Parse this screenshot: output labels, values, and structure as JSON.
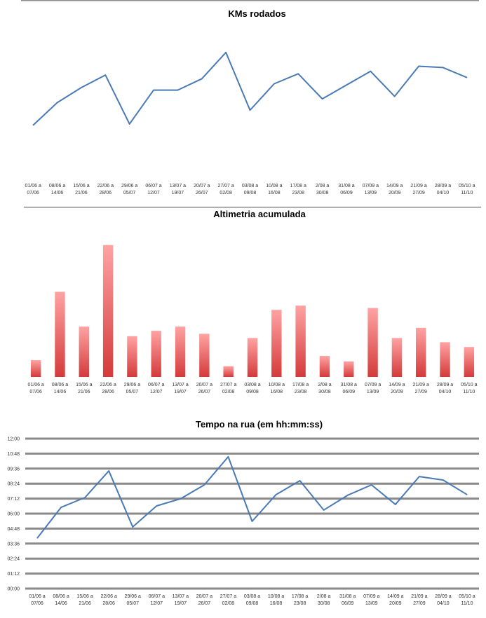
{
  "chart_data": [
    {
      "type": "line",
      "title": "KMs rodados",
      "xlabel": "",
      "ylabel": "",
      "ylim": [
        0,
        120
      ],
      "yticks": [
        "0",
        "20",
        "40",
        "60",
        "80",
        "100",
        "120"
      ],
      "grid": true,
      "series_color": "#4a7ab5",
      "categories": [
        [
          "01/06 a",
          "07/06"
        ],
        [
          "08/06 a",
          "14/06"
        ],
        [
          "15/06 a",
          "21/06"
        ],
        [
          "22/06 a",
          "28/06"
        ],
        [
          "29/06 a",
          "05/07"
        ],
        [
          "06/07 a",
          "12/07"
        ],
        [
          "13/07 a",
          "19/07"
        ],
        [
          "20/07 a",
          "26/07"
        ],
        [
          "27/07 a",
          "02/08"
        ],
        [
          "03/08 a",
          "09/08"
        ],
        [
          "10/08 a",
          "16/08"
        ],
        [
          "17/08 a",
          "23/08"
        ],
        [
          "2/08 a",
          "30/08"
        ],
        [
          "31/08 a",
          "06/09"
        ],
        [
          "07/09 a",
          "13/09"
        ],
        [
          "14/09 a",
          "20/09"
        ],
        [
          "21/09 a",
          "27/09"
        ],
        [
          "28/09 a",
          "04/10"
        ],
        [
          "05/10 a",
          "11/10"
        ]
      ],
      "values": [
        42,
        60,
        72,
        82,
        43,
        70,
        70,
        79,
        100,
        54,
        75,
        83,
        63,
        74,
        85,
        65,
        89,
        88,
        80
      ]
    },
    {
      "type": "bar",
      "title": "Altimetria acumulada",
      "xlabel": "",
      "ylabel": "",
      "ylim": [
        0,
        2500
      ],
      "yticks": [
        "0",
        "500",
        "1000",
        "1500",
        "2000",
        "2500"
      ],
      "grid": true,
      "bar_colors": [
        "#ffa3a3",
        "#d43a3a"
      ],
      "categories": [
        [
          "01/06 a",
          "07/06"
        ],
        [
          "08/06 a",
          "14/06"
        ],
        [
          "15/06 a",
          "21/06"
        ],
        [
          "22/06 a",
          "28/06"
        ],
        [
          "29/06 a",
          "05/07"
        ],
        [
          "06/07 a",
          "12/07"
        ],
        [
          "13/07 a",
          "19/07"
        ],
        [
          "20/07 a",
          "26/07"
        ],
        [
          "27/07 a",
          "02/08"
        ],
        [
          "03/08 a",
          "09/08"
        ],
        [
          "10/08 a",
          "16/08"
        ],
        [
          "17/08 a",
          "23/08"
        ],
        [
          "2/08 a",
          "30/08"
        ],
        [
          "31/08 a",
          "06/09"
        ],
        [
          "07/09 a",
          "13/09"
        ],
        [
          "14/09 a",
          "20/09"
        ],
        [
          "21/09 a",
          "27/09"
        ],
        [
          "28/09 a",
          "04/10"
        ],
        [
          "05/10 a",
          "11/10"
        ]
      ],
      "values": [
        280,
        1420,
        840,
        2200,
        680,
        770,
        840,
        720,
        180,
        650,
        1120,
        1190,
        350,
        260,
        1150,
        650,
        820,
        580,
        500
      ]
    },
    {
      "type": "line",
      "title": "Tempo na rua (em hh:mm:ss)",
      "xlabel": "",
      "ylabel": "",
      "ylim": [
        "00:00",
        "12:00"
      ],
      "yticks": [
        "00:00",
        "01:12",
        "02:24",
        "03:36",
        "04:48",
        "06:00",
        "07:12",
        "08:24",
        "09:36",
        "10:48",
        "12:00"
      ],
      "grid": true,
      "series_color": "#4a7ab5",
      "categories": [
        [
          "01/06 a",
          "07/06"
        ],
        [
          "08/06 a",
          "14/06"
        ],
        [
          "15/06 a",
          "21/06"
        ],
        [
          "22/06 a",
          "28/06"
        ],
        [
          "29/06 a",
          "05/07"
        ],
        [
          "06/07 a",
          "12/07"
        ],
        [
          "13/07 a",
          "19/07"
        ],
        [
          "20/07 a",
          "26/07"
        ],
        [
          "27/07 a",
          "02/08"
        ],
        [
          "03/08 a",
          "09/08"
        ],
        [
          "10/08 a",
          "16/08"
        ],
        [
          "17/08 a",
          "23/08"
        ],
        [
          "2/08 a",
          "30/08"
        ],
        [
          "31/08 a",
          "06/09"
        ],
        [
          "07/09 a",
          "13/09"
        ],
        [
          "14/09 a",
          "20/09"
        ],
        [
          "21/09 a",
          "27/09"
        ],
        [
          "28/09 a",
          "04/10"
        ],
        [
          "05/10 a",
          "11/10"
        ]
      ],
      "values": [
        "04:02",
        "06:30",
        "07:17",
        "09:25",
        "04:56",
        "06:37",
        "07:11",
        "08:18",
        "10:33",
        "05:23",
        "07:31",
        "08:38",
        "06:17",
        "07:28",
        "08:18",
        "06:44",
        "08:58",
        "08:41",
        "07:31"
      ]
    }
  ]
}
